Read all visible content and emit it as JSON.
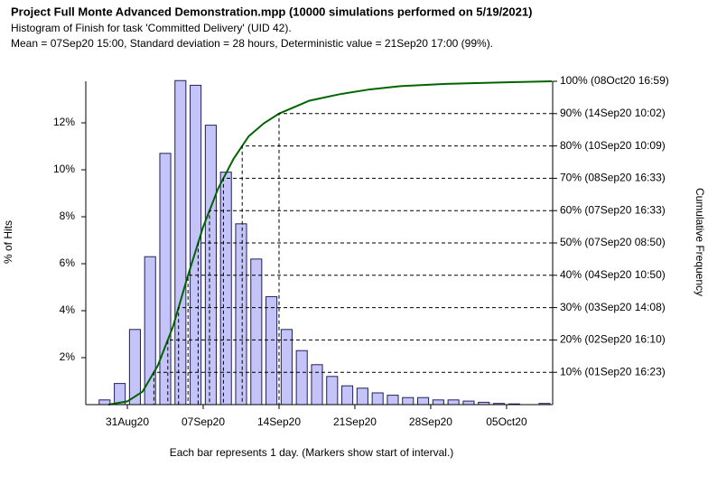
{
  "chart_data": {
    "type": "histogram",
    "title": "Project Full Monte Advanced Demonstration.mpp (10000 simulations performed on 5/19/2021)",
    "subtitle": [
      "Histogram of Finish for task 'Committed Delivery' (UID 42).",
      "Mean = 07Sep20 15:00, Standard deviation = 28 hours, Deterministic value = 21Sep20 17:00 (99%)."
    ],
    "xlabel": "Each bar represents 1 day. (Markers show start of interval.)",
    "ylabel": "% of Hits",
    "y2label": "Cumulative Frequency",
    "color": "#c4c4f8",
    "edgecolor": "#20205a",
    "bins": [
      -2,
      -1,
      0,
      1,
      2,
      3,
      4,
      5,
      6,
      7,
      8,
      9,
      10,
      11,
      12,
      13,
      14,
      15,
      16,
      17,
      18,
      19,
      20,
      21,
      22,
      23,
      24,
      25,
      26,
      27,
      28
    ],
    "values": [
      0.2,
      0.9,
      3.2,
      6.3,
      10.7,
      13.8,
      13.6,
      11.9,
      9.9,
      7.7,
      6.2,
      4.6,
      3.2,
      2.3,
      1.7,
      1.2,
      0.8,
      0.7,
      0.5,
      0.4,
      0.3,
      0.3,
      0.2,
      0.2,
      0.15,
      0.1,
      0.05,
      0.03,
      0,
      0.05
    ],
    "xlim": [
      -2.74,
      28.04
    ],
    "xticks": [
      {
        "value": 0,
        "label": "31Aug20"
      },
      {
        "value": 5,
        "label": "07Sep20"
      },
      {
        "value": 10,
        "label": "14Sep20"
      },
      {
        "value": 15,
        "label": "21Sep20"
      },
      {
        "value": 20,
        "label": "28Sep20"
      },
      {
        "value": 25,
        "label": "05Oct20"
      }
    ],
    "ylim": [
      0,
      13.77
    ],
    "yticks": [
      {
        "value": 2,
        "label": "2%"
      },
      {
        "value": 4,
        "label": "4%"
      },
      {
        "value": 6,
        "label": "6%"
      },
      {
        "value": 8,
        "label": "8%"
      },
      {
        "value": 10,
        "label": "10%"
      },
      {
        "value": 12,
        "label": "12%"
      }
    ],
    "y2lim": [
      0,
      100
    ],
    "y2ticks": [
      {
        "value": 10,
        "label": "10% (01Sep20 16:23)"
      },
      {
        "value": 20,
        "label": "20% (02Sep20 16:10)"
      },
      {
        "value": 30,
        "label": "30% (03Sep20 14:08)"
      },
      {
        "value": 40,
        "label": "40% (04Sep20 10:50)"
      },
      {
        "value": 50,
        "label": "50% (07Sep20 08:50)"
      },
      {
        "value": 60,
        "label": "60% (07Sep20 16:33)"
      },
      {
        "value": 70,
        "label": "70% (08Sep20 16:33)"
      },
      {
        "value": 80,
        "label": "80% (10Sep20 10:09)"
      },
      {
        "value": 90,
        "label": "90% (14Sep20 10:02)"
      },
      {
        "value": 100,
        "label": "100% (08Oct20 16:59)"
      }
    ],
    "series": [
      {
        "type": "line",
        "axis": "y2",
        "color": "#006400",
        "x": [
          -1.25,
          0,
          1,
          2,
          3,
          4,
          5,
          6,
          7,
          8,
          9,
          10,
          12,
          14,
          16,
          18,
          21,
          25,
          28
        ],
        "values": [
          0,
          1,
          4,
          12,
          24,
          40,
          55,
          67,
          76,
          83,
          87,
          90,
          94,
          96,
          97.5,
          98.5,
          99.2,
          99.7,
          100
        ]
      }
    ]
  }
}
